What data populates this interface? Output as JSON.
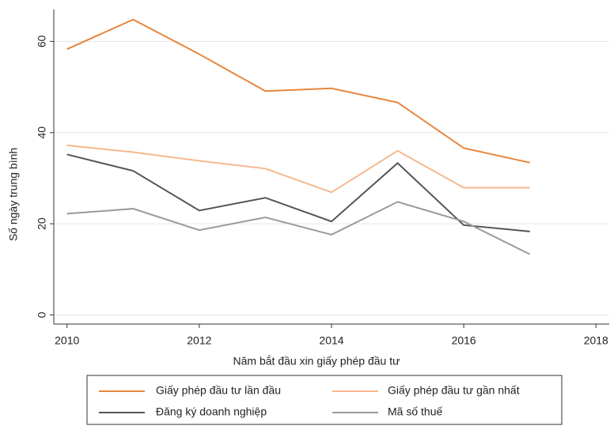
{
  "chart_data": {
    "type": "line",
    "xlabel": "Năm bắt đầu xin giấy phép đầu tư",
    "ylabel": "Số ngày trung bình",
    "x": [
      2010,
      2011,
      2012,
      2013,
      2014,
      2015,
      2016,
      2017
    ],
    "series": [
      {
        "name": "Giấy phép đầu tư lần đầu",
        "color": "#e8853d",
        "values": [
          58.3,
          64.8,
          57.2,
          49.1,
          49.7,
          46.6,
          36.6,
          33.4
        ]
      },
      {
        "name": "Giấy phép đầu tư gần nhất",
        "color": "#f5b88c",
        "values": [
          37.2,
          35.7,
          33.8,
          32.1,
          26.9,
          36.0,
          27.9,
          27.9
        ]
      },
      {
        "name": "Đăng ký doanh nghiệp",
        "color": "#555555",
        "values": [
          35.2,
          31.6,
          22.9,
          25.7,
          20.5,
          33.3,
          19.7,
          18.3
        ]
      },
      {
        "name": "Mã số thuế",
        "color": "#9a9a9a",
        "values": [
          22.2,
          23.3,
          18.6,
          21.4,
          17.6,
          24.8,
          20.5,
          13.3
        ]
      }
    ],
    "xlim": [
      2009.8,
      2018.2
    ],
    "xticks": [
      2010,
      2012,
      2014,
      2016,
      2018
    ],
    "ylim": [
      -2,
      67
    ],
    "yticks": [
      0,
      20,
      40,
      60
    ],
    "grid": true,
    "legend": "bottom"
  }
}
